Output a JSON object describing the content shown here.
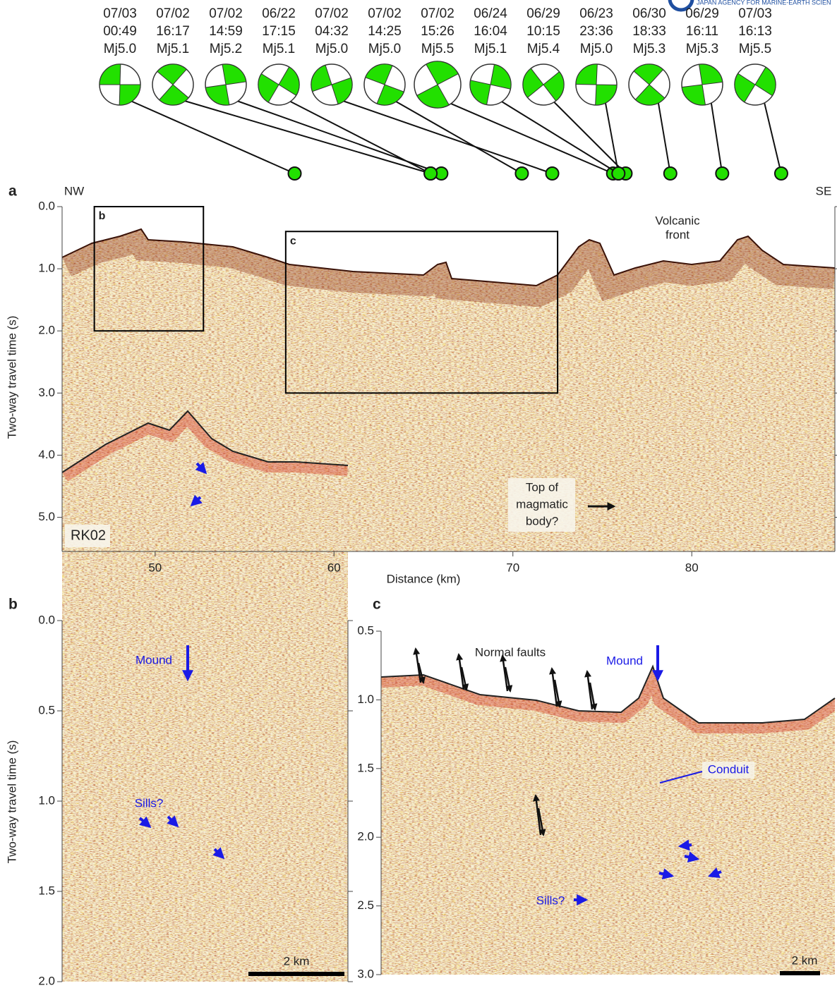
{
  "logo_text": "JAPAN AGENCY FOR MARINE-EARTH SCIEN",
  "events": [
    {
      "date": "07/03",
      "time": "00:49",
      "magnitude": "Mj5.0",
      "distance_km": 57.8
    },
    {
      "date": "07/02",
      "time": "16:17",
      "magnitude": "Mj5.1",
      "distance_km": 65.4
    },
    {
      "date": "07/02",
      "time": "14:59",
      "magnitude": "Mj5.2",
      "distance_km": 66.0
    },
    {
      "date": "06/22",
      "time": "17:15",
      "magnitude": "Mj5.1",
      "distance_km": 65.4
    },
    {
      "date": "07/02",
      "time": "04:32",
      "magnitude": "Mj5.0",
      "distance_km": 72.2
    },
    {
      "date": "07/02",
      "time": "14:25",
      "magnitude": "Mj5.0",
      "distance_km": 70.5
    },
    {
      "date": "07/02",
      "time": "15:26",
      "magnitude": "Mj5.5",
      "distance_km": 75.6
    },
    {
      "date": "06/24",
      "time": "16:04",
      "magnitude": "Mj5.1",
      "distance_km": 75.9
    },
    {
      "date": "06/29",
      "time": "10:15",
      "magnitude": "Mj5.4",
      "distance_km": 76.3
    },
    {
      "date": "06/23",
      "time": "23:36",
      "magnitude": "Mj5.0",
      "distance_km": 75.9
    },
    {
      "date": "06/30",
      "time": "18:33",
      "magnitude": "Mj5.3",
      "distance_km": 78.8
    },
    {
      "date": "06/29",
      "time": "16:11",
      "magnitude": "Mj5.3",
      "distance_km": 81.7
    },
    {
      "date": "07/03",
      "time": "16:13",
      "magnitude": "Mj5.5",
      "distance_km": 85.0
    }
  ],
  "panel_a": {
    "label": "a",
    "left_label": "NW",
    "right_label": "SE",
    "xlabel": "Distance (km)",
    "ylabel": "Two-way travel time (s)",
    "xlim": [
      44.8,
      88.0
    ],
    "xticks": [
      50,
      60,
      70,
      80
    ],
    "ylim": [
      0,
      5.55
    ],
    "y_direction": "down",
    "yticks": [
      {
        "value": 0,
        "label": "0.0"
      },
      {
        "value": 1,
        "label": "1.0"
      },
      {
        "value": 2,
        "label": "2.0"
      },
      {
        "value": 3,
        "label": "3.0"
      },
      {
        "value": 4,
        "label": "4.0"
      },
      {
        "value": 5,
        "label": "5.0"
      }
    ],
    "boxes": [
      {
        "label": "b",
        "xlim": [
          46.6,
          52.7
        ],
        "ylim": [
          0,
          2.0
        ]
      },
      {
        "label": "c",
        "xlim": [
          57.3,
          72.5
        ],
        "ylim": [
          0.4,
          3.0
        ]
      }
    ],
    "annotations": {
      "volcanic_front": [
        "Volcanic",
        "front"
      ],
      "magmatic": [
        "Top of",
        "magmatic",
        "body?"
      ],
      "line_name": "RK02"
    }
  },
  "panel_b": {
    "label": "b",
    "ylabel": "Two-way travel time (s)",
    "ylim": [
      0,
      2.0
    ],
    "y_direction": "down",
    "yticks": [
      {
        "value": 0,
        "label": "0.0"
      },
      {
        "value": 0.5,
        "label": "0.5"
      },
      {
        "value": 1,
        "label": "1.0"
      },
      {
        "value": 1.5,
        "label": "1.5"
      },
      {
        "value": 2,
        "label": "2.0"
      }
    ],
    "annotations": {
      "mound": "Mound",
      "sills": "Sills?",
      "scale": "2 km"
    }
  },
  "panel_c": {
    "label": "c",
    "ylim": [
      0.5,
      3.0
    ],
    "y_direction": "down",
    "yticks": [
      {
        "value": 0.5,
        "label": "0.5"
      },
      {
        "value": 1,
        "label": "1.0"
      },
      {
        "value": 1.5,
        "label": "1.5"
      },
      {
        "value": 2,
        "label": "2.0"
      },
      {
        "value": 2.5,
        "label": "2.5"
      },
      {
        "value": 3,
        "label": "3.0"
      }
    ],
    "annotations": {
      "faults": "Normal faults",
      "mound": "Mound",
      "conduit": "Conduit",
      "sills": "Sills?",
      "scale": "2 km"
    }
  }
}
